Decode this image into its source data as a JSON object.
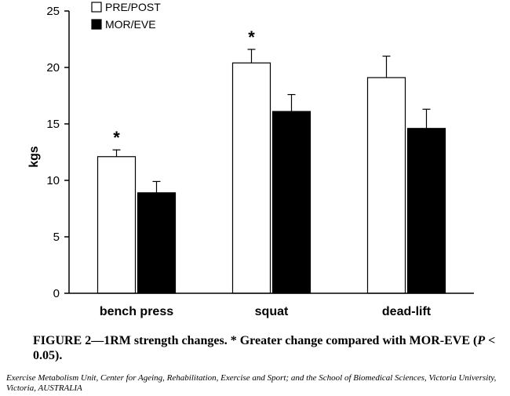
{
  "chart_data": {
    "type": "bar",
    "categories": [
      "bench press",
      "squat",
      "dead-lift"
    ],
    "series": [
      {
        "name": "PRE/POST",
        "values": [
          12.1,
          20.4,
          19.1
        ],
        "errors": [
          0.6,
          1.2,
          1.9
        ],
        "color": "#ffffff"
      },
      {
        "name": "MOR/EVE",
        "values": [
          8.9,
          16.1,
          14.6
        ],
        "errors": [
          1.0,
          1.5,
          1.7
        ],
        "color": "#000000"
      }
    ],
    "significance": [
      {
        "category": "bench press",
        "series": "PRE/POST",
        "label": "*"
      },
      {
        "category": "squat",
        "series": "PRE/POST",
        "label": "*"
      }
    ],
    "ylabel": "kgs",
    "xlabel": "",
    "ylim": [
      0,
      25
    ],
    "yticks": [
      0,
      5,
      10,
      15,
      20,
      25
    ],
    "legend_position": "top-left",
    "grid": false
  },
  "caption": {
    "main": "FIGURE 2—1RM strength changes. * Greater change compared with MOR-EVE (",
    "p_symbol": "P",
    "tail": " < 0.05)."
  },
  "affiliation": "Exercise Metabolism Unit, Center for Ageing, Rehabilitation, Exercise and Sport; and the School of Biomedical Sciences, Victoria University, Victoria, AUSTRALIA"
}
